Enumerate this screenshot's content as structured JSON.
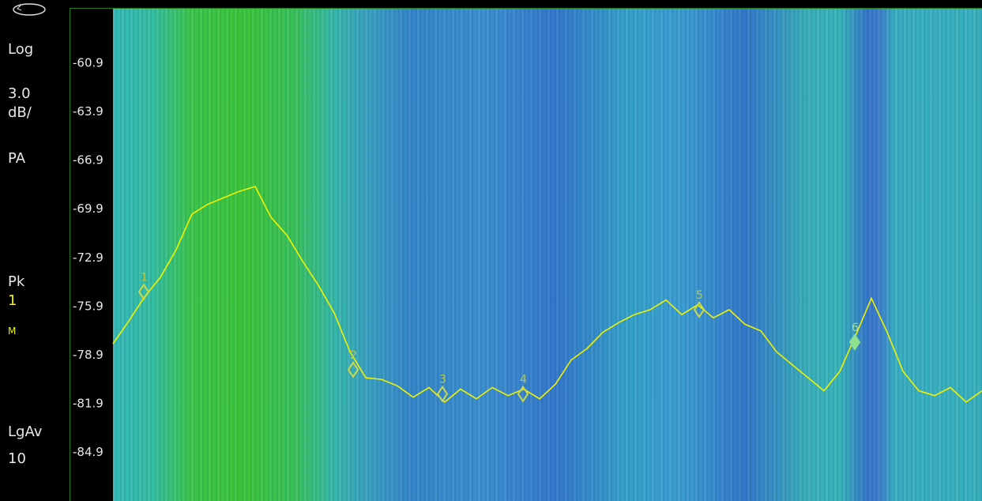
{
  "panel": {
    "scale": "Log",
    "scale_value": "3.0",
    "scale_unit": "dB/",
    "preamp": "PA",
    "detector": "Pk",
    "trace_number": "1",
    "trace_mode": "M",
    "average_type": "LgAv",
    "average_count": "10"
  },
  "chart_data": {
    "type": "line",
    "ylim": [
      -87.9,
      -57.9
    ],
    "yticks": [
      -60.9,
      -63.9,
      -66.9,
      -69.9,
      -72.9,
      -75.9,
      -78.9,
      -81.9,
      -84.9
    ],
    "series": [
      {
        "color": "#f2f200",
        "values": [
          -78.2,
          -76.8,
          -75.3,
          -74.1,
          -72.4,
          -70.2,
          -69.6,
          -69.2,
          -68.8,
          -68.5,
          -70.4,
          -71.5,
          -73.1,
          -74.6,
          -76.3,
          -78.7,
          -80.3,
          -80.4,
          -80.8,
          -81.5,
          -80.9,
          -81.8,
          -81.0,
          -81.6,
          -80.9,
          -81.4,
          -81.0,
          -81.6,
          -80.7,
          -79.2,
          -78.5,
          -77.5,
          -76.9,
          -76.4,
          -76.1,
          -75.5,
          -76.4,
          -75.8,
          -76.6,
          -76.1,
          -77.0,
          -77.4,
          -78.7,
          -79.5,
          -80.3,
          -81.1,
          -79.9,
          -77.7,
          -75.4,
          -77.5,
          -79.9,
          -81.1,
          -81.4,
          -80.9,
          -81.8,
          -81.1
        ]
      }
    ],
    "markers": [
      {
        "label": "1",
        "x": 1.95,
        "value": -75.0
      },
      {
        "label": "2",
        "x": 15.2,
        "value": -79.8
      },
      {
        "label": "3",
        "x": 20.85,
        "value": -81.3
      },
      {
        "label": "4",
        "x": 25.95,
        "value": -81.3
      },
      {
        "label": "5",
        "x": 37.1,
        "value": -76.1
      },
      {
        "label": "6",
        "x": 46.95,
        "value": -78.1,
        "active": true
      }
    ]
  }
}
